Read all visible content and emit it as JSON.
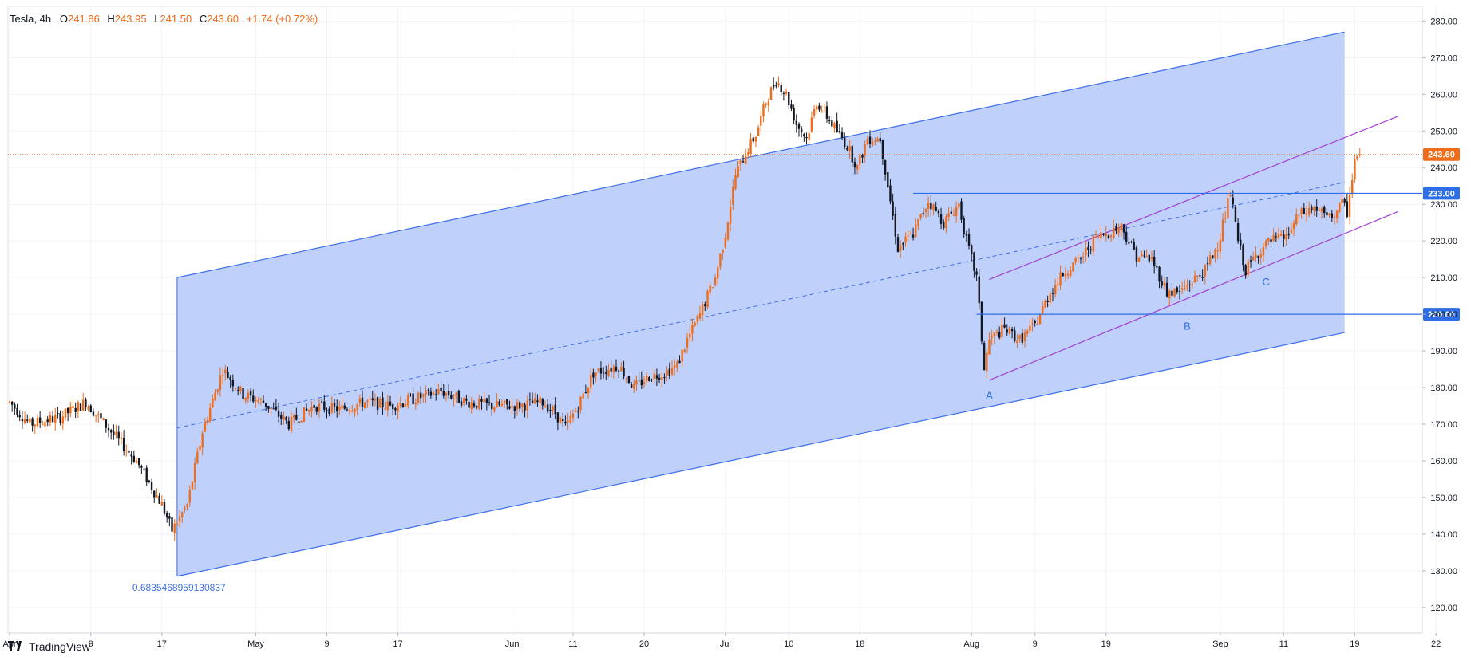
{
  "header": {
    "symbol": "Tesla",
    "interval": "4h",
    "open_label": "O",
    "open": "241.86",
    "high_label": "H",
    "high": "243.95",
    "low_label": "L",
    "low": "241.50",
    "close_label": "C",
    "close": "243.60",
    "change": "+1.74 (+0.72%)"
  },
  "branding": {
    "name": "TradingView"
  },
  "colors": {
    "up": "#ef6c1a",
    "down": "#131722",
    "channel_fill": "#bccdfa",
    "channel_line": "#3d6fe8",
    "purple": "#a23fd0",
    "level": "#2e6ee6",
    "price_line": "#ef6c1a"
  },
  "chart_data": {
    "type": "candlestick",
    "symbol": "Tesla",
    "interval": "4h",
    "ylim": [
      113,
      284
    ],
    "y_ticks": [
      "120.00",
      "130.00",
      "140.00",
      "150.00",
      "160.00",
      "170.00",
      "180.00",
      "190.00",
      "200.00",
      "210.00",
      "220.00",
      "230.00",
      "240.00",
      "250.00",
      "260.00",
      "270.00",
      "280.00"
    ],
    "x_ticks": [
      {
        "label": "Apr",
        "i": 0
      },
      {
        "label": "9",
        "i": 32
      },
      {
        "label": "17",
        "i": 60
      },
      {
        "label": "May",
        "i": 97
      },
      {
        "label": "9",
        "i": 125
      },
      {
        "label": "17",
        "i": 153
      },
      {
        "label": "Jun",
        "i": 198
      },
      {
        "label": "11",
        "i": 222
      },
      {
        "label": "20",
        "i": 250
      },
      {
        "label": "Jul",
        "i": 282
      },
      {
        "label": "10",
        "i": 307
      },
      {
        "label": "18",
        "i": 335
      },
      {
        "label": "Aug",
        "i": 379
      },
      {
        "label": "9",
        "i": 404
      },
      {
        "label": "19",
        "i": 432
      },
      {
        "label": "Sep",
        "i": 477
      },
      {
        "label": "11",
        "i": 502
      },
      {
        "label": "19",
        "i": 530
      },
      {
        "label": "22",
        "i": 562
      }
    ],
    "anchors": [
      [
        0,
        176
      ],
      [
        8,
        170
      ],
      [
        20,
        172
      ],
      [
        30,
        176
      ],
      [
        40,
        168
      ],
      [
        50,
        160
      ],
      [
        60,
        148
      ],
      [
        64,
        141
      ],
      [
        70,
        148
      ],
      [
        76,
        168
      ],
      [
        84,
        185
      ],
      [
        92,
        178
      ],
      [
        100,
        176
      ],
      [
        110,
        170
      ],
      [
        120,
        175
      ],
      [
        130,
        174
      ],
      [
        140,
        176
      ],
      [
        150,
        175
      ],
      [
        160,
        177
      ],
      [
        170,
        179
      ],
      [
        180,
        176
      ],
      [
        190,
        175
      ],
      [
        200,
        175
      ],
      [
        210,
        176
      ],
      [
        215,
        173
      ],
      [
        219,
        169
      ],
      [
        224,
        175
      ],
      [
        230,
        184
      ],
      [
        240,
        186
      ],
      [
        246,
        180
      ],
      [
        252,
        183
      ],
      [
        258,
        184
      ],
      [
        263,
        186
      ],
      [
        267,
        193
      ],
      [
        272,
        200
      ],
      [
        278,
        210
      ],
      [
        282,
        222
      ],
      [
        286,
        238
      ],
      [
        290,
        244
      ],
      [
        294,
        249
      ],
      [
        298,
        258
      ],
      [
        302,
        264
      ],
      [
        306,
        260
      ],
      [
        310,
        252
      ],
      [
        314,
        248
      ],
      [
        318,
        258
      ],
      [
        322,
        254
      ],
      [
        326,
        250
      ],
      [
        330,
        246
      ],
      [
        334,
        240
      ],
      [
        338,
        248
      ],
      [
        343,
        248
      ],
      [
        350,
        218
      ],
      [
        356,
        222
      ],
      [
        362,
        231
      ],
      [
        368,
        225
      ],
      [
        374,
        230
      ],
      [
        377,
        220
      ],
      [
        381,
        210
      ],
      [
        384,
        185
      ],
      [
        386,
        193
      ],
      [
        392,
        196
      ],
      [
        398,
        193
      ],
      [
        404,
        197
      ],
      [
        410,
        206
      ],
      [
        416,
        212
      ],
      [
        422,
        215
      ],
      [
        428,
        221
      ],
      [
        432,
        222
      ],
      [
        438,
        224
      ],
      [
        444,
        216
      ],
      [
        450,
        215
      ],
      [
        456,
        206
      ],
      [
        461,
        206
      ],
      [
        466,
        209
      ],
      [
        471,
        212
      ],
      [
        476,
        219
      ],
      [
        481,
        233
      ],
      [
        484,
        220
      ],
      [
        487,
        212
      ],
      [
        492,
        217
      ],
      [
        497,
        220
      ],
      [
        503,
        221
      ],
      [
        508,
        227
      ],
      [
        514,
        229
      ],
      [
        520,
        226
      ],
      [
        525,
        230
      ],
      [
        527,
        228
      ],
      [
        530,
        242
      ],
      [
        532,
        243.6
      ]
    ],
    "last_price": "243.60",
    "levels": [
      {
        "value": 233.0,
        "label": "233.00"
      },
      {
        "value": 200.0,
        "label": "200.00"
      }
    ],
    "regression_channel": {
      "start_i": 66,
      "end_i": 526,
      "upper": [
        210,
        277
      ],
      "middle": [
        169,
        236
      ],
      "lower": [
        128.5,
        195
      ],
      "coefficient": "0.6835468959130837"
    },
    "purple_channel": {
      "start_i": 386,
      "end_i": 547,
      "upper": [
        209.5,
        254
      ],
      "lower": [
        182,
        228
      ]
    },
    "wave_labels": [
      {
        "label": "A",
        "i": 386,
        "value": 179
      },
      {
        "label": "B",
        "i": 464,
        "value": 198
      },
      {
        "label": "C",
        "i": 495,
        "value": 210
      }
    ]
  }
}
